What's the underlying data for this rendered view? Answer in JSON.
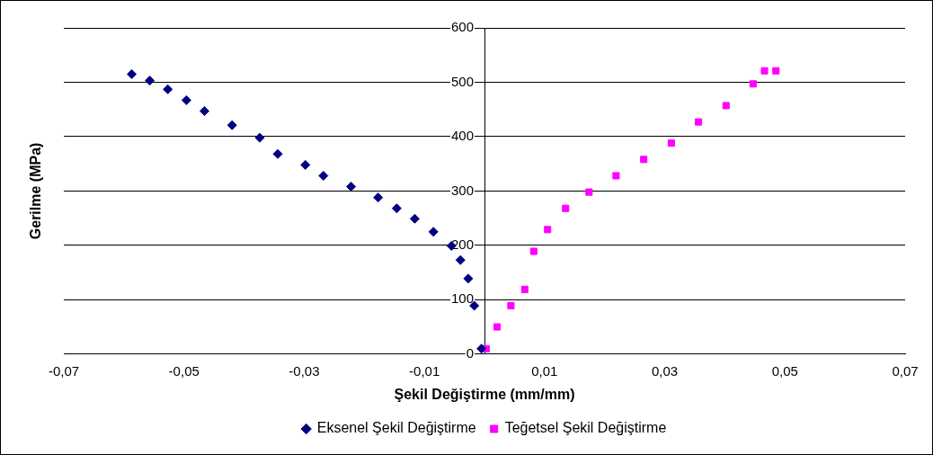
{
  "chart_data": {
    "type": "scatter",
    "xlabel": "Şekil Değiştirme (mm/mm)",
    "ylabel": "Gerilme (MPa)",
    "xlim": [
      -0.07,
      0.07
    ],
    "ylim": [
      0,
      600
    ],
    "xticks": [
      {
        "value": -0.07,
        "label": "-0,07"
      },
      {
        "value": -0.05,
        "label": "-0,05"
      },
      {
        "value": -0.03,
        "label": "-0,03"
      },
      {
        "value": -0.01,
        "label": "-0,01"
      },
      {
        "value": 0.01,
        "label": "0,01"
      },
      {
        "value": 0.03,
        "label": "0,03"
      },
      {
        "value": 0.05,
        "label": "0,05"
      },
      {
        "value": 0.07,
        "label": "0,07"
      }
    ],
    "yticks": [
      0,
      100,
      200,
      300,
      400,
      500,
      600
    ],
    "grid": "y",
    "legend": "bottom",
    "series": [
      {
        "name": "Eksenel Şekil Değiştirme",
        "color": "#000080",
        "marker": "diamond",
        "x": [
          -0.0005,
          -0.0017,
          -0.0027,
          -0.004,
          -0.0055,
          -0.0085,
          -0.0116,
          -0.0146,
          -0.0177,
          -0.0222,
          -0.0268,
          -0.0298,
          -0.0344,
          -0.0374,
          -0.042,
          -0.0466,
          -0.0496,
          -0.0527,
          -0.0557,
          -0.0587
        ],
        "values": [
          10,
          89,
          139,
          173,
          199,
          225,
          249,
          268,
          288,
          308,
          328,
          348,
          368,
          398,
          421,
          447,
          467,
          487,
          503,
          515
        ]
      },
      {
        "name": "Teğetsel Şekil Değiştirme",
        "color": "#ff00ff",
        "marker": "square",
        "x": [
          0.0003,
          0.0021,
          0.0044,
          0.0067,
          0.0082,
          0.0105,
          0.0135,
          0.0174,
          0.0219,
          0.0265,
          0.0311,
          0.0356,
          0.0402,
          0.0447,
          0.0466,
          0.0485
        ],
        "values": [
          10,
          50,
          89,
          119,
          189,
          229,
          268,
          298,
          328,
          358,
          388,
          427,
          457,
          497,
          521,
          521
        ]
      }
    ]
  }
}
